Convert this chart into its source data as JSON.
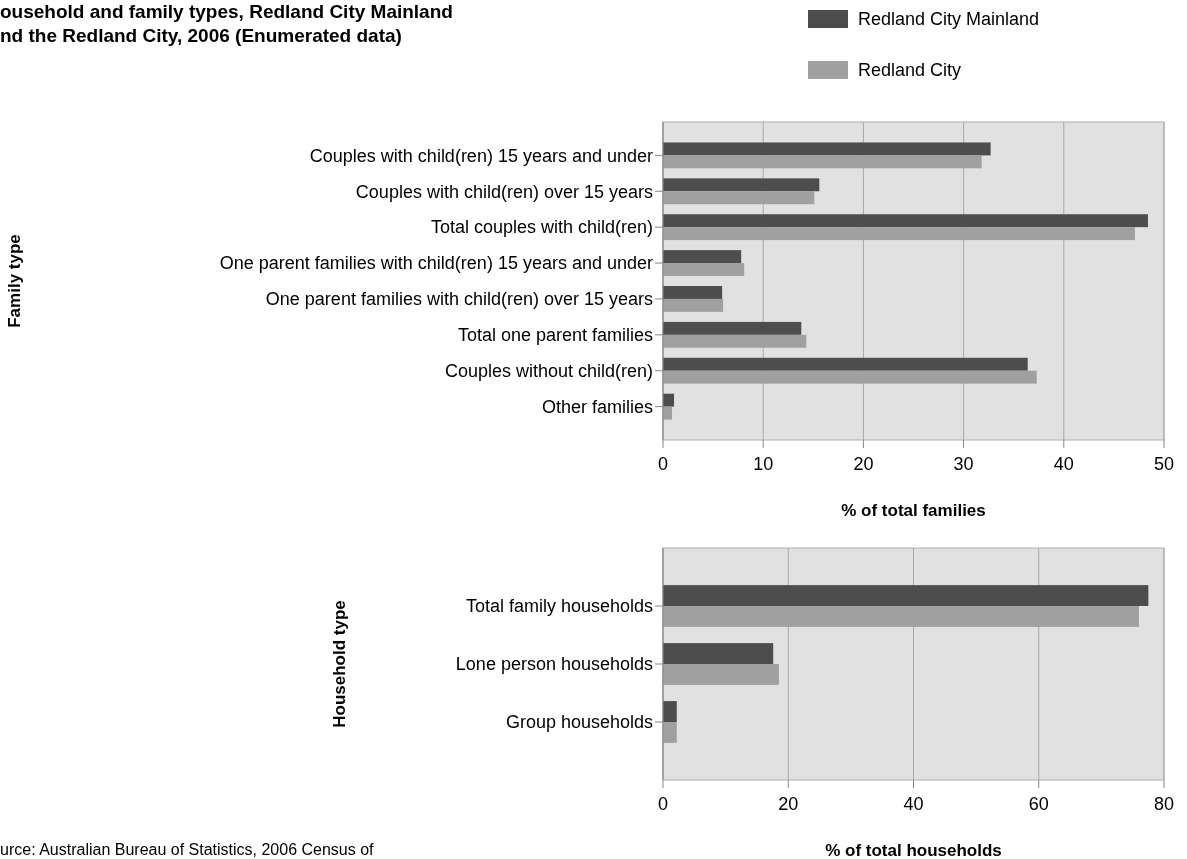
{
  "chart_data": [
    {
      "type": "bar",
      "orientation": "horizontal",
      "title": "ousehold and family types, Redland City Mainland\nnd the Redland City, 2006 (Enumerated data)",
      "xlabel": "% of total families",
      "ylabel": "Family type",
      "categories": [
        "Couples with child(ren) 15 years and under",
        "Couples with child(ren) over 15 years",
        "Total couples with child(ren)",
        "One parent families with child(ren) 15 years and under",
        "One parent families with child(ren) over 15 years",
        "Total one parent families",
        "Couples without child(ren)",
        "Other families"
      ],
      "series": [
        {
          "name": "Redland City Mainland",
          "color": "#4d4d4d",
          "values": [
            32.7,
            15.6,
            48.4,
            7.8,
            5.9,
            13.8,
            36.4,
            1.1
          ]
        },
        {
          "name": "Redland City",
          "color": "#a0a0a0",
          "values": [
            31.8,
            15.1,
            47.1,
            8.1,
            6.0,
            14.3,
            37.3,
            0.9
          ]
        }
      ],
      "xlim": [
        0,
        50
      ],
      "xticks": [
        0,
        10,
        20,
        30,
        40,
        50
      ],
      "grid": "x",
      "legend": "top right"
    },
    {
      "type": "bar",
      "orientation": "horizontal",
      "xlabel": "% of total households",
      "ylabel": "Household type",
      "categories": [
        "Total family households",
        "Lone person households",
        "Group households"
      ],
      "series": [
        {
          "color": "#4d4d4d",
          "values": [
            77.5,
            17.6,
            2.2
          ]
        },
        {
          "color": "#a0a0a0",
          "values": [
            76.0,
            18.5,
            2.2
          ]
        }
      ],
      "xlim": [
        0,
        80
      ],
      "xticks": [
        0,
        20,
        40,
        60,
        80
      ],
      "grid": "x",
      "annotations": [
        "urce: Australian Bureau of Statistics, 2006 Census of"
      ]
    }
  ]
}
